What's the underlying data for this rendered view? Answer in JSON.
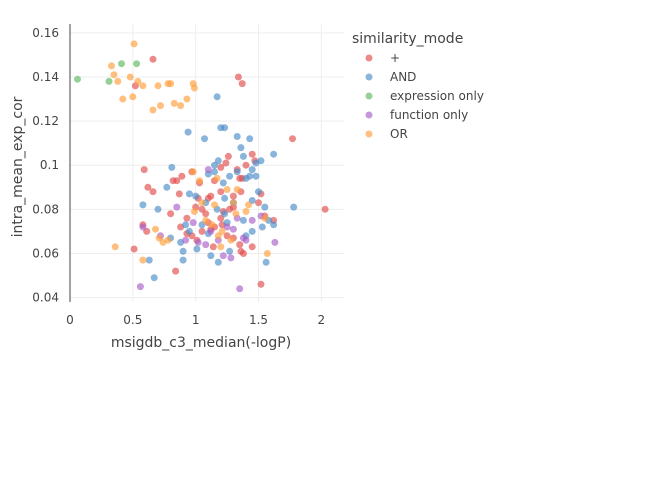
{
  "chart_data": {
    "type": "scatter",
    "title": "",
    "xlabel": "msigdb_c3_median(-logP)",
    "ylabel": "intra_mean_exp_cor",
    "xlim": [
      0,
      2.18
    ],
    "ylim": [
      0.038,
      0.164
    ],
    "xticks": [
      0,
      0.5,
      1,
      1.5,
      2
    ],
    "xtick_labels": [
      "0",
      "0.5",
      "1",
      "1.5",
      "2"
    ],
    "yticks": [
      0.04,
      0.06,
      0.08,
      0.1,
      0.12,
      0.14,
      0.16
    ],
    "ytick_labels": [
      "0.04",
      "0.06",
      "0.08",
      "0.1",
      "0.12",
      "0.14",
      "0.16"
    ],
    "grid": true,
    "legend": {
      "title": "similarity_mode",
      "placement": "right",
      "entries": [
        "+",
        "AND",
        "expression only",
        "function only",
        "OR"
      ]
    },
    "series": [
      {
        "name": "+",
        "color": "#e24a4a",
        "points": [
          [
            0.52,
            0.136
          ],
          [
            0.66,
            0.148
          ],
          [
            1.34,
            0.14
          ],
          [
            1.37,
            0.137
          ],
          [
            1.77,
            0.112
          ],
          [
            2.03,
            0.08
          ],
          [
            0.59,
            0.098
          ],
          [
            0.62,
            0.09
          ],
          [
            0.66,
            0.088
          ],
          [
            0.82,
            0.093
          ],
          [
            0.85,
            0.093
          ],
          [
            0.89,
            0.095
          ],
          [
            0.8,
            0.078
          ],
          [
            0.87,
            0.087
          ],
          [
            0.97,
            0.097
          ],
          [
            1.03,
            0.092
          ],
          [
            1.1,
            0.085
          ],
          [
            1.12,
            0.086
          ],
          [
            1.15,
            0.093
          ],
          [
            1.2,
            0.099
          ],
          [
            1.24,
            0.101
          ],
          [
            1.26,
            0.104
          ],
          [
            1.33,
            0.098
          ],
          [
            1.35,
            0.094
          ],
          [
            1.37,
            0.094
          ],
          [
            1.4,
            0.1
          ],
          [
            1.45,
            0.105
          ],
          [
            1.47,
            0.102
          ],
          [
            1.3,
            0.086
          ],
          [
            1.36,
            0.088
          ],
          [
            1.52,
            0.087
          ],
          [
            1.27,
            0.08
          ],
          [
            1.3,
            0.081
          ],
          [
            1.22,
            0.079
          ],
          [
            1.2,
            0.076
          ],
          [
            1.15,
            0.072
          ],
          [
            1.1,
            0.074
          ],
          [
            1.08,
            0.078
          ],
          [
            1.05,
            0.08
          ],
          [
            1.0,
            0.081
          ],
          [
            0.93,
            0.076
          ],
          [
            0.88,
            0.072
          ],
          [
            0.93,
            0.069
          ],
          [
            0.97,
            0.068
          ],
          [
            1.01,
            0.066
          ],
          [
            1.05,
            0.07
          ],
          [
            1.12,
            0.071
          ],
          [
            1.25,
            0.068
          ],
          [
            1.3,
            0.067
          ],
          [
            1.35,
            0.064
          ],
          [
            1.38,
            0.06
          ],
          [
            1.45,
            0.063
          ],
          [
            1.55,
            0.077
          ],
          [
            1.62,
            0.075
          ],
          [
            0.58,
            0.073
          ],
          [
            0.61,
            0.07
          ],
          [
            0.51,
            0.062
          ],
          [
            0.84,
            0.052
          ],
          [
            1.52,
            0.046
          ],
          [
            1.14,
            0.063
          ],
          [
            1.21,
            0.073
          ],
          [
            1.36,
            0.061
          ],
          [
            1.02,
            0.085
          ],
          [
            1.2,
            0.088
          ],
          [
            1.5,
            0.083
          ]
        ]
      },
      {
        "name": "AND",
        "color": "#4a8cc8",
        "points": [
          [
            0.94,
            0.115
          ],
          [
            1.17,
            0.131
          ],
          [
            1.15,
            0.1
          ],
          [
            1.07,
            0.112
          ],
          [
            1.2,
            0.117
          ],
          [
            1.23,
            0.117
          ],
          [
            1.33,
            0.113
          ],
          [
            1.36,
            0.108
          ],
          [
            1.43,
            0.112
          ],
          [
            1.38,
            0.104
          ],
          [
            1.48,
            0.101
          ],
          [
            1.52,
            0.102
          ],
          [
            1.62,
            0.105
          ],
          [
            1.45,
            0.098
          ],
          [
            1.43,
            0.095
          ],
          [
            0.81,
            0.099
          ],
          [
            0.77,
            0.09
          ],
          [
            0.95,
            0.087
          ],
          [
            1.0,
            0.086
          ],
          [
            1.1,
            0.096
          ],
          [
            1.15,
            0.097
          ],
          [
            1.18,
            0.102
          ],
          [
            1.22,
            0.092
          ],
          [
            1.27,
            0.095
          ],
          [
            1.33,
            0.097
          ],
          [
            1.4,
            0.094
          ],
          [
            1.48,
            0.095
          ],
          [
            1.5,
            0.088
          ],
          [
            1.55,
            0.081
          ],
          [
            1.78,
            0.081
          ],
          [
            1.62,
            0.073
          ],
          [
            1.58,
            0.075
          ],
          [
            1.53,
            0.072
          ],
          [
            1.45,
            0.07
          ],
          [
            1.4,
            0.068
          ],
          [
            1.25,
            0.074
          ],
          [
            1.23,
            0.078
          ],
          [
            1.17,
            0.08
          ],
          [
            1.1,
            0.069
          ],
          [
            0.95,
            0.07
          ],
          [
            0.92,
            0.073
          ],
          [
            1.05,
            0.073
          ],
          [
            0.58,
            0.082
          ],
          [
            0.7,
            0.08
          ],
          [
            0.8,
            0.067
          ],
          [
            0.9,
            0.061
          ],
          [
            1.01,
            0.062
          ],
          [
            1.12,
            0.059
          ],
          [
            1.18,
            0.056
          ],
          [
            1.27,
            0.061
          ],
          [
            0.63,
            0.057
          ],
          [
            0.9,
            0.057
          ],
          [
            0.67,
            0.049
          ],
          [
            1.56,
            0.056
          ],
          [
            0.88,
            0.065
          ],
          [
            1.3,
            0.083
          ],
          [
            1.23,
            0.085
          ],
          [
            1.38,
            0.075
          ],
          [
            1.08,
            0.083
          ],
          [
            1.45,
            0.084
          ]
        ]
      },
      {
        "name": "expression only",
        "color": "#5cb85c",
        "points": [
          [
            0.06,
            0.139
          ],
          [
            0.31,
            0.138
          ],
          [
            0.41,
            0.146
          ],
          [
            0.53,
            0.146
          ]
        ]
      },
      {
        "name": "function only",
        "color": "#a860c8",
        "points": [
          [
            0.58,
            0.072
          ],
          [
            0.72,
            0.068
          ],
          [
            0.85,
            0.081
          ],
          [
            0.92,
            0.066
          ],
          [
            1.02,
            0.065
          ],
          [
            1.08,
            0.064
          ],
          [
            1.12,
            0.07
          ],
          [
            1.18,
            0.066
          ],
          [
            1.22,
            0.059
          ],
          [
            1.28,
            0.058
          ],
          [
            1.3,
            0.071
          ],
          [
            1.38,
            0.067
          ],
          [
            1.4,
            0.066
          ],
          [
            1.45,
            0.075
          ],
          [
            1.52,
            0.077
          ],
          [
            1.63,
            0.065
          ],
          [
            0.56,
            0.045
          ],
          [
            1.35,
            0.044
          ],
          [
            1.1,
            0.098
          ],
          [
            1.25,
            0.072
          ],
          [
            1.33,
            0.076
          ],
          [
            0.98,
            0.074
          ]
        ]
      },
      {
        "name": "OR",
        "color": "#ff9e3a",
        "points": [
          [
            0.51,
            0.155
          ],
          [
            0.33,
            0.145
          ],
          [
            0.35,
            0.141
          ],
          [
            0.38,
            0.138
          ],
          [
            0.42,
            0.13
          ],
          [
            0.48,
            0.14
          ],
          [
            0.5,
            0.131
          ],
          [
            0.54,
            0.138
          ],
          [
            0.58,
            0.136
          ],
          [
            0.66,
            0.125
          ],
          [
            0.7,
            0.136
          ],
          [
            0.72,
            0.127
          ],
          [
            0.78,
            0.137
          ],
          [
            0.8,
            0.137
          ],
          [
            0.83,
            0.128
          ],
          [
            0.88,
            0.127
          ],
          [
            0.93,
            0.13
          ],
          [
            0.98,
            0.137
          ],
          [
            0.99,
            0.135
          ],
          [
            0.36,
            0.063
          ],
          [
            0.58,
            0.057
          ],
          [
            0.68,
            0.071
          ],
          [
            0.71,
            0.067
          ],
          [
            0.74,
            0.065
          ],
          [
            0.78,
            0.066
          ],
          [
            0.98,
            0.097
          ],
          [
            1.03,
            0.093
          ],
          [
            1.17,
            0.094
          ],
          [
            1.25,
            0.089
          ],
          [
            1.3,
            0.083
          ],
          [
            1.4,
            0.079
          ],
          [
            1.18,
            0.068
          ],
          [
            1.2,
            0.063
          ],
          [
            1.13,
            0.073
          ],
          [
            1.08,
            0.075
          ],
          [
            1.15,
            0.082
          ],
          [
            1.32,
            0.078
          ],
          [
            1.42,
            0.082
          ],
          [
            1.55,
            0.076
          ],
          [
            1.57,
            0.06
          ],
          [
            1.33,
            0.089
          ],
          [
            0.99,
            0.079
          ],
          [
            1.05,
            0.083
          ],
          [
            1.21,
            0.07
          ],
          [
            1.28,
            0.066
          ]
        ]
      }
    ]
  }
}
